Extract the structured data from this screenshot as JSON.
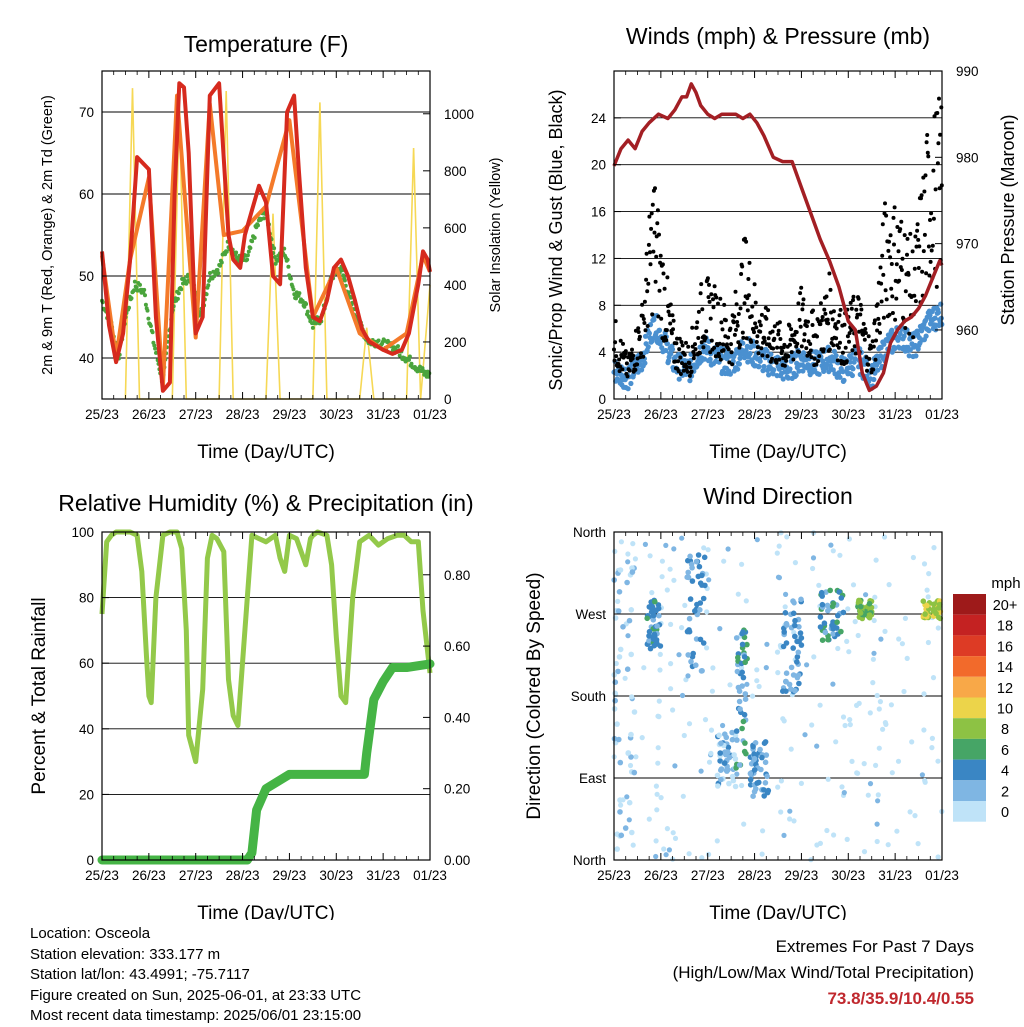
{
  "chart_data": [
    {
      "type": "line",
      "title": "Temperature (F)",
      "xlabel": "Time (Day/UTC)",
      "ylabel": "2m & 9m T (Red, Orange) & 2m Td (Green)",
      "ylabel_right": "Solar Insolation (Yellow)",
      "x_ticks": [
        "25/23",
        "26/23",
        "27/23",
        "28/23",
        "29/23",
        "30/23",
        "31/23",
        "01/23"
      ],
      "xlim_days": [
        0,
        7
      ],
      "ylim": [
        35,
        75
      ],
      "y_ticks": [
        40,
        50,
        60,
        70
      ],
      "ylim_right": [
        0,
        1150
      ],
      "y_ticks_right": [
        0,
        200,
        400,
        600,
        800,
        1000
      ],
      "grid": "horizontal",
      "series": [
        {
          "name": "2m T",
          "color": "#d62a1e",
          "x": [
            0,
            0.15,
            0.3,
            0.45,
            0.6,
            0.75,
            1.0,
            1.15,
            1.3,
            1.45,
            1.55,
            1.65,
            1.75,
            1.85,
            2.0,
            2.15,
            2.3,
            2.5,
            2.7,
            2.8,
            2.95,
            3.05,
            3.2,
            3.35,
            3.5,
            3.65,
            3.8,
            3.95,
            4.1,
            4.2,
            4.35,
            4.5,
            4.65,
            4.8,
            4.95,
            5.1,
            5.25,
            5.4,
            5.55,
            5.7,
            5.85,
            6.0,
            6.2,
            6.4,
            6.55,
            6.65,
            6.75,
            6.85,
            6.95,
            7.0
          ],
          "values": [
            53,
            44,
            39.5,
            43,
            52,
            64.5,
            63,
            45,
            36,
            37,
            60,
            73.5,
            73,
            65,
            43,
            45,
            72,
            73.5,
            55,
            52,
            51,
            55,
            58,
            61,
            59,
            50,
            49,
            70,
            72,
            63,
            51,
            45,
            44.5,
            47,
            51,
            52,
            50,
            47,
            43.5,
            42,
            41.5,
            41,
            40.5,
            41,
            43,
            46,
            49,
            53,
            52,
            50.5
          ]
        },
        {
          "name": "9m T",
          "color": "#f47a2a",
          "x": [
            0,
            0.3,
            0.6,
            1.0,
            1.3,
            1.6,
            2.0,
            2.3,
            2.6,
            3.0,
            3.5,
            4.0,
            4.5,
            5.0,
            5.5,
            6.0,
            6.5,
            6.85,
            7.0
          ],
          "values": [
            52.5,
            40,
            52,
            62,
            36.5,
            72,
            42.5,
            71,
            55,
            55.5,
            58.5,
            69,
            45,
            51,
            43,
            41,
            43,
            52.5,
            50.5
          ]
        },
        {
          "name": "2m Td",
          "color": "#4aa43c",
          "x": [
            0,
            0.2,
            0.35,
            0.5,
            0.7,
            0.9,
            1.1,
            1.3,
            1.5,
            1.7,
            1.9,
            2.1,
            2.3,
            2.5,
            2.7,
            2.9,
            3.1,
            3.3,
            3.5,
            3.7,
            3.9,
            4.1,
            4.3,
            4.5,
            4.7,
            4.9,
            5.1,
            5.3,
            5.5,
            5.7,
            5.9,
            6.1,
            6.3,
            6.5,
            6.7,
            6.9,
            7.0
          ],
          "values": [
            47,
            44,
            40,
            45,
            49,
            48,
            42,
            37,
            46,
            49,
            50,
            45,
            50,
            51,
            54,
            52,
            52,
            56,
            58,
            52,
            53,
            48,
            47,
            44,
            45,
            50,
            51,
            47,
            44,
            42,
            42,
            41.5,
            41,
            40,
            39,
            38,
            38
          ]
        },
        {
          "name": "Solar Insolation",
          "color": "#f6d855",
          "axis": "right",
          "x": [
            0.5,
            0.65,
            0.8,
            1.2,
            1.5,
            1.65,
            1.8,
            2.2,
            2.5,
            2.65,
            2.8,
            3.2,
            3.5,
            3.65,
            3.8,
            4.2,
            4.5,
            4.65,
            4.8,
            5.2,
            5.5,
            5.65,
            5.8,
            6.2,
            6.5,
            6.65,
            6.8,
            7.0
          ],
          "values": [
            0,
            1090,
            0,
            0,
            0,
            1030,
            0,
            0,
            0,
            1080,
            0,
            0,
            0,
            650,
            0,
            0,
            0,
            1040,
            0,
            0,
            0,
            250,
            0,
            0,
            0,
            880,
            0,
            400
          ]
        }
      ]
    },
    {
      "type": "scatter",
      "title": "Winds (mph) & Pressure (mb)",
      "xlabel": "Time (Day/UTC)",
      "ylabel": "Sonic/Prop Wind & Gust (Blue, Black)",
      "ylabel_right": "Station Pressure (Maroon)",
      "x_ticks": [
        "25/23",
        "26/23",
        "27/23",
        "28/23",
        "29/23",
        "30/23",
        "31/23",
        "01/23"
      ],
      "xlim_days": [
        0,
        7
      ],
      "ylim": [
        0,
        28
      ],
      "y_ticks": [
        0,
        4,
        8,
        12,
        16,
        20,
        24
      ],
      "ylim_right": [
        952,
        990
      ],
      "y_ticks_right": [
        960,
        970,
        980,
        990
      ],
      "grid": "horizontal",
      "series": [
        {
          "name": "Wind",
          "color": "#4a90d0",
          "x": [
            0,
            0.3,
            0.6,
            0.85,
            1.0,
            1.3,
            1.6,
            1.9,
            2.2,
            2.5,
            2.8,
            3.1,
            3.4,
            3.7,
            4.0,
            4.3,
            4.6,
            4.9,
            5.2,
            5.5,
            5.8,
            6.1,
            6.4,
            6.7,
            7.0
          ],
          "values": [
            2,
            1.5,
            3,
            6,
            5,
            2.5,
            2,
            4,
            3,
            2.5,
            4,
            3,
            2.5,
            2,
            3,
            2.5,
            3,
            2,
            3,
            1.5,
            4,
            5,
            4,
            6,
            7
          ]
        },
        {
          "name": "Gust",
          "color": "#000000",
          "x": [
            0,
            0.3,
            0.6,
            0.85,
            1.0,
            1.3,
            1.6,
            1.9,
            2.2,
            2.5,
            2.8,
            3.1,
            3.4,
            3.7,
            4.0,
            4.3,
            4.6,
            4.9,
            5.2,
            5.5,
            5.8,
            6.1,
            6.4,
            6.7,
            7.0
          ],
          "values": [
            6,
            3,
            7,
            17,
            12,
            5,
            4,
            9,
            8,
            6,
            12,
            7,
            6,
            5,
            8,
            6,
            9,
            6,
            8,
            4,
            15,
            14,
            11,
            20,
            22
          ]
        },
        {
          "name": "Station Pressure",
          "color": "#a31f24",
          "axis": "right",
          "x": [
            0,
            0.15,
            0.3,
            0.45,
            0.6,
            0.75,
            0.95,
            1.15,
            1.3,
            1.45,
            1.55,
            1.65,
            1.75,
            1.85,
            2.0,
            2.15,
            2.3,
            2.45,
            2.6,
            2.75,
            2.9,
            3.05,
            3.2,
            3.4,
            3.6,
            3.8,
            4.0,
            4.2,
            4.4,
            4.6,
            4.8,
            5.0,
            5.15,
            5.3,
            5.45,
            5.6,
            5.75,
            5.9,
            6.05,
            6.2,
            6.35,
            6.5,
            6.65,
            6.8,
            6.95,
            7.0
          ],
          "values": [
            979,
            981,
            982,
            981,
            983,
            984,
            985,
            984.5,
            985.5,
            987,
            987,
            988.5,
            987.5,
            986,
            985,
            984.5,
            985,
            985,
            985,
            984.5,
            985,
            984,
            982.5,
            980,
            979.5,
            979.5,
            976.5,
            973.5,
            970.5,
            968,
            965,
            961,
            960,
            955,
            953,
            953.5,
            955,
            958.5,
            960,
            961,
            961.5,
            962.5,
            964,
            966,
            968,
            967.5
          ]
        }
      ]
    },
    {
      "type": "line",
      "title": "Relative Humidity (%) & Precipitation (in)",
      "xlabel": "Time (Day/UTC)",
      "ylabel": "Percent & Total Rainfall",
      "x_ticks": [
        "25/23",
        "26/23",
        "27/23",
        "28/23",
        "29/23",
        "30/23",
        "31/23",
        "01/23"
      ],
      "xlim_days": [
        0,
        7
      ],
      "ylim": [
        0,
        100
      ],
      "y_ticks": [
        0,
        20,
        40,
        60,
        80,
        100
      ],
      "ylim_right": [
        0,
        0.92
      ],
      "y_ticks_right": [
        "0.00",
        "0.20",
        "0.40",
        "0.60",
        "0.80"
      ],
      "grid": "horizontal",
      "series": [
        {
          "name": "Relative Humidity",
          "color": "#93c94a",
          "x": [
            0,
            0.1,
            0.2,
            0.3,
            0.6,
            0.75,
            0.85,
            0.95,
            1.0,
            1.05,
            1.15,
            1.3,
            1.45,
            1.6,
            1.7,
            1.8,
            1.85,
            2.0,
            2.15,
            2.25,
            2.35,
            2.45,
            2.6,
            2.7,
            2.8,
            2.9,
            3.2,
            3.35,
            3.5,
            3.6,
            3.7,
            3.8,
            3.9,
            4.0,
            4.15,
            4.35,
            4.45,
            4.5,
            4.6,
            4.8,
            4.9,
            5.0,
            5.1,
            5.2,
            5.35,
            5.5,
            5.7,
            5.9,
            6.1,
            6.3,
            6.45,
            6.6,
            6.75,
            6.85,
            7.0
          ],
          "values": [
            75,
            97,
            99,
            100,
            100,
            99,
            88,
            62,
            50,
            48,
            80,
            99,
            100,
            100,
            95,
            70,
            38,
            30,
            52,
            92,
            99,
            98,
            94,
            55,
            44,
            41,
            99,
            98,
            97,
            98,
            99,
            92,
            88,
            99,
            98,
            90,
            98,
            99,
            100,
            99,
            90,
            68,
            50,
            48,
            80,
            97,
            99,
            96,
            98,
            99,
            99,
            97,
            97,
            76,
            57
          ]
        },
        {
          "name": "Precipitation",
          "color": "#45b445",
          "axis": "right",
          "x": [
            0,
            2.5,
            3.1,
            3.2,
            3.3,
            3.5,
            4.0,
            4.5,
            5.0,
            5.3,
            5.6,
            5.65,
            5.8,
            6.0,
            6.2,
            6.5,
            7.0
          ],
          "values": [
            0,
            0,
            0,
            0.02,
            0.14,
            0.2,
            0.24,
            0.24,
            0.24,
            0.24,
            0.24,
            0.3,
            0.45,
            0.5,
            0.54,
            0.54,
            0.55
          ]
        }
      ]
    },
    {
      "type": "scatter",
      "title": "Wind Direction",
      "xlabel": "Time (Day/UTC)",
      "ylabel": "Direction (Colored By Speed)",
      "x_ticks": [
        "25/23",
        "26/23",
        "27/23",
        "28/23",
        "29/23",
        "30/23",
        "31/23",
        "01/23"
      ],
      "xlim_days": [
        0,
        7
      ],
      "y_ticks": [
        "North",
        "West",
        "South",
        "East",
        "North"
      ],
      "ylim": [
        0,
        360
      ],
      "legend": {
        "title": "mph",
        "labels": [
          "20+",
          "18",
          "16",
          "14",
          "12",
          "10",
          "8",
          "6",
          "4",
          "2",
          "0"
        ],
        "colors": [
          "#9e1a1a",
          "#c42222",
          "#dd3b25",
          "#f26a2b",
          "#f8a848",
          "#ecd44a",
          "#8dc244",
          "#46a566",
          "#3a86c4",
          "#7fb6e3",
          "#bfe3f8"
        ]
      },
      "clusters": [
        {
          "x_start": 0.0,
          "x_end": 0.45,
          "dir_low": 10,
          "dir_high": 355,
          "speed": 1
        },
        {
          "x_start": 0.7,
          "x_end": 1.0,
          "dir_low": 230,
          "dir_high": 285,
          "speed": 4
        },
        {
          "x_start": 1.55,
          "x_end": 1.95,
          "dir_low": 200,
          "dir_high": 350,
          "speed": 3
        },
        {
          "x_start": 2.2,
          "x_end": 2.6,
          "dir_low": 80,
          "dir_high": 140,
          "speed": 2
        },
        {
          "x_start": 2.6,
          "x_end": 2.85,
          "dir_low": 100,
          "dir_high": 260,
          "speed": 4
        },
        {
          "x_start": 2.9,
          "x_end": 3.3,
          "dir_low": 70,
          "dir_high": 130,
          "speed": 3
        },
        {
          "x_start": 3.6,
          "x_end": 4.0,
          "dir_low": 180,
          "dir_high": 290,
          "speed": 3
        },
        {
          "x_start": 4.4,
          "x_end": 4.9,
          "dir_low": 240,
          "dir_high": 300,
          "speed": 4
        },
        {
          "x_start": 5.2,
          "x_end": 5.5,
          "dir_low": 265,
          "dir_high": 285,
          "speed": 7
        },
        {
          "x_start": 6.6,
          "x_end": 7.0,
          "dir_low": 265,
          "dir_high": 285,
          "speed": 9
        }
      ]
    }
  ],
  "footer": {
    "location": "Location: Osceola",
    "elevation": "Station elevation: 333.177 m",
    "latlon": "Station lat/lon: 43.4991; -75.7117",
    "created": "Figure created on Sun, 2025-06-01, at 23:33 UTC",
    "recent": "Most recent data timestamp: 2025/06/01 23:15:00"
  },
  "extremes": {
    "title": "Extremes For Past 7 Days",
    "subtitle": "(High/Low/Max Wind/Total Precipitation)",
    "values": "73.8/35.9/10.4/0.55"
  }
}
